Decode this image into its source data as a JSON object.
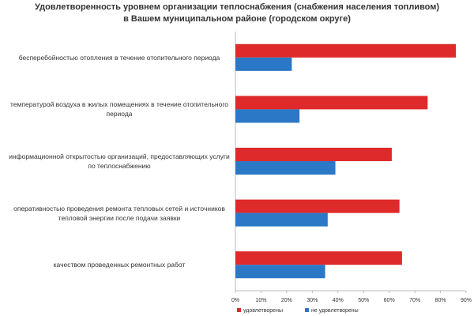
{
  "chart_data": {
    "type": "hbar",
    "title": "Удовлетворенность уровнем организации теплоснабжения (снабжения населения топливом) в Вашем муниципальном районе (городском округе)",
    "categories": [
      "бесперебойностью отопления в течение отопительного периода",
      "температурой воздуха в жилых помещениях в течение отопительного периода",
      "информационной открытостью организаций, предоставляющих услуги по теплоснабжению",
      "оперативностью проведения ремонта тепловых сетей и источников тепловой энергии после подачи заявки",
      "качеством проведенных ремонтных работ"
    ],
    "series": [
      {
        "name": "удовлетворены",
        "color": "#de2a2a",
        "values": [
          86,
          75,
          61,
          64,
          65
        ]
      },
      {
        "name": "не удовлетворены",
        "color": "#2b78c6",
        "values": [
          22,
          25,
          39,
          36,
          35
        ]
      }
    ],
    "xlim": [
      0,
      90
    ],
    "xticks": [
      {
        "value": 0,
        "label": "0%"
      },
      {
        "value": 10,
        "label": "10%"
      },
      {
        "value": 20,
        "label": "20%"
      },
      {
        "value": 30,
        "label": "30%"
      },
      {
        "value": 40,
        "label": "40%"
      },
      {
        "value": 50,
        "label": "50%"
      },
      {
        "value": 60,
        "label": "60%"
      },
      {
        "value": 70,
        "label": "70%"
      },
      {
        "value": 80,
        "label": "80%"
      },
      {
        "value": 90,
        "label": "90%"
      }
    ],
    "legend": "bottom"
  }
}
